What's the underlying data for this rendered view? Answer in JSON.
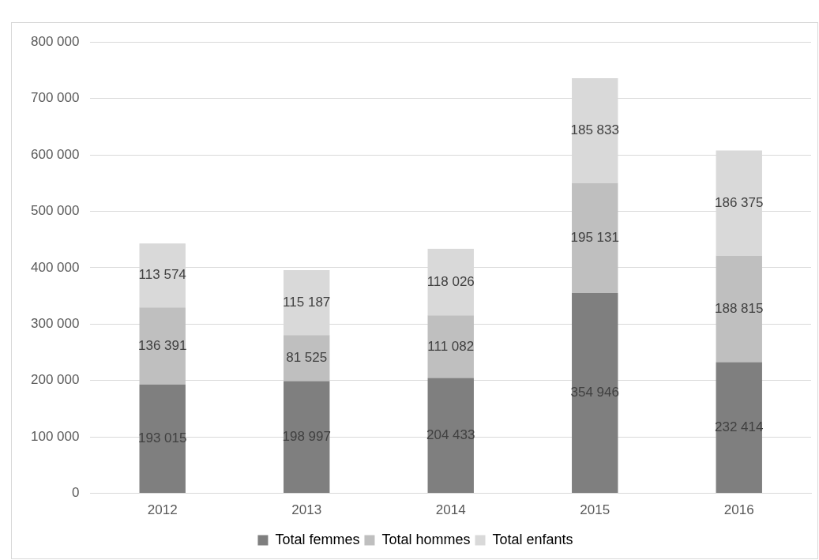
{
  "chart_data": {
    "type": "bar",
    "stacked": true,
    "categories": [
      "2012",
      "2013",
      "2014",
      "2015",
      "2016"
    ],
    "series": [
      {
        "name": "Total femmes",
        "color": "#7f7f7f",
        "values": [
          193015,
          198997,
          204433,
          354946,
          232414
        ],
        "value_labels": [
          "193 015",
          "198 997",
          "204 433",
          "354 946",
          "232 414"
        ]
      },
      {
        "name": "Total hommes",
        "color": "#bfbfbf",
        "values": [
          136391,
          81525,
          111082,
          195131,
          188815
        ],
        "value_labels": [
          "136 391",
          "81 525",
          "111 082",
          "195 131",
          "188 815"
        ]
      },
      {
        "name": "Total enfants",
        "color": "#d9d9d9",
        "values": [
          113574,
          115187,
          118026,
          185833,
          186375
        ],
        "value_labels": [
          "113 574",
          "115 187",
          "118 026",
          "185 833",
          "186 375"
        ]
      }
    ],
    "ylim": [
      0,
      800000
    ],
    "yticks": [
      {
        "value": 0,
        "label": "0"
      },
      {
        "value": 100000,
        "label": "100 000"
      },
      {
        "value": 200000,
        "label": "200 000"
      },
      {
        "value": 300000,
        "label": "300 000"
      },
      {
        "value": 400000,
        "label": "400 000"
      },
      {
        "value": 500000,
        "label": "500 000"
      },
      {
        "value": 600000,
        "label": "600 000"
      },
      {
        "value": 700000,
        "label": "700 000"
      },
      {
        "value": 800000,
        "label": "800 000"
      }
    ],
    "grid": "y",
    "legend": "bottom"
  }
}
